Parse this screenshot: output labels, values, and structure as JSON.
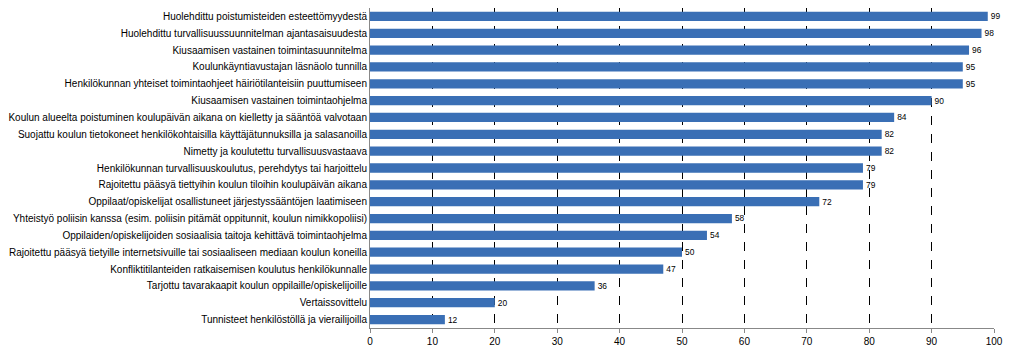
{
  "chart_data": {
    "type": "bar",
    "orientation": "horizontal",
    "categories": [
      "Huolehdittu poistumisteiden esteettömyydestä",
      "Huolehdittu turvallisuussuunnitelman ajantasaisuudesta",
      "Kiusaamisen vastainen toimintasuunnitelma",
      "Koulunkäyntiavustajan läsnäolo tunnilla",
      "Henkilökunnan yhteiset toimintaohjeet häiriötilanteisiin puuttumiseen",
      "Kiusaamisen vastainen toimintaohjelma",
      "Koulun alueelta poistuminen koulupäivän aikana on kielletty ja sääntöä valvotaan",
      "Suojattu koulun tietokoneet henkilökohtaisilla käyttäjätunnuksilla ja salasanoilla",
      "Nimetty ja koulutettu turvallisuusvastaava",
      "Henkilökunnan turvallisuuskoulutus, perehdytys tai harjoittelu",
      "Rajoitettu pääsyä tiettyihin koulun tiloihin koulupäivän aikana",
      "Oppilaat/opiskelijat osallistuneet järjestyssääntöjen laatimiseen",
      "Yhteistyö poliisin kanssa (esim. poliisin pitämät oppitunnit, koulun nimikkopoliisi)",
      "Oppilaiden/opiskelijoiden sosiaalisia taitoja kehittävä toimintaohjelma",
      "Rajoitettu pääsyä tietyille internetsivuille tai sosiaaliseen mediaan koulun koneilla",
      "Konfliktitilanteiden ratkaisemisen koulutus henkilökunnalle",
      "Tarjottu tavarakaapit koulun oppilaille/opiskelijoille",
      "Vertaissovittelu",
      "Tunnisteet henkilöstöllä ja vierailijoilla"
    ],
    "values": [
      99,
      98,
      96,
      95,
      95,
      90,
      84,
      82,
      82,
      79,
      79,
      72,
      58,
      54,
      50,
      47,
      36,
      20,
      12
    ],
    "color": "#3a6fb5",
    "xlim": [
      0,
      100
    ],
    "xticks": [
      0,
      10,
      20,
      30,
      40,
      50,
      60,
      70,
      80,
      90,
      100
    ],
    "grid": true,
    "data_labels": true
  }
}
